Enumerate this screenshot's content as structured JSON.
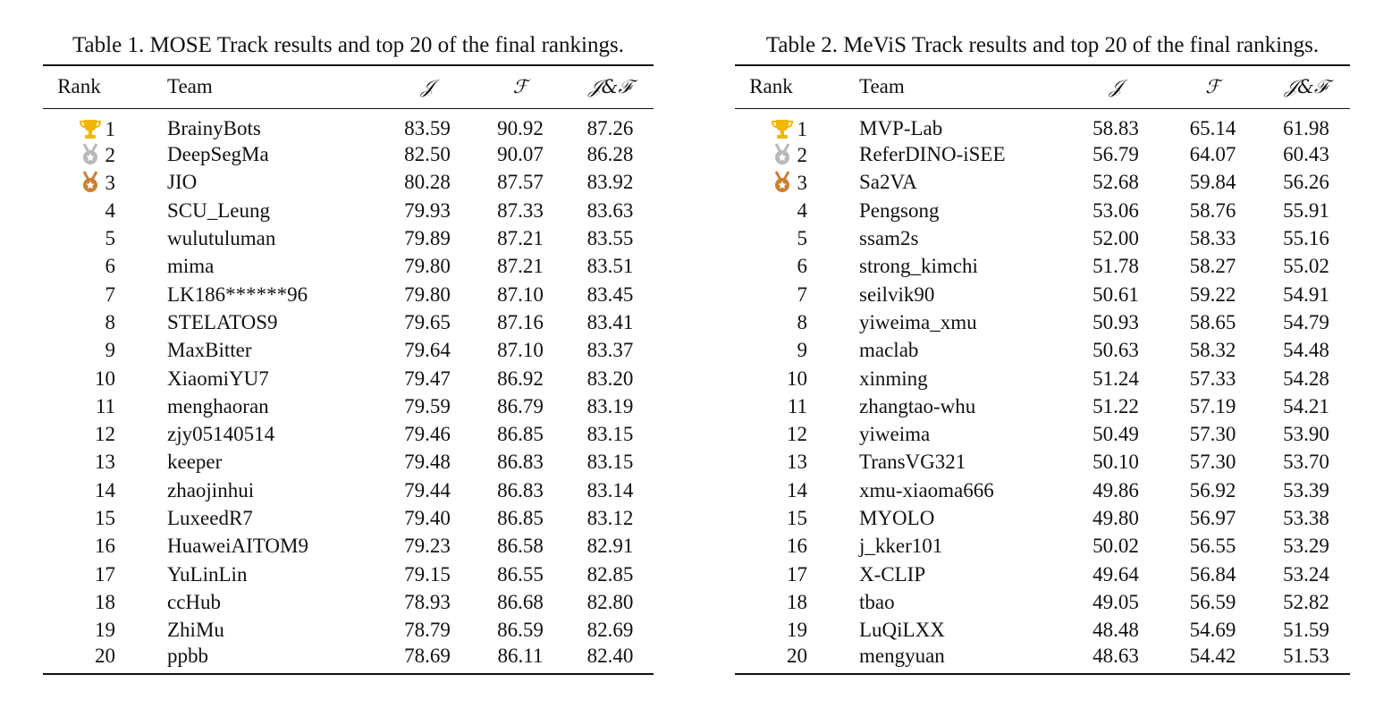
{
  "table1": {
    "caption": "Table 1. MOSE Track results and top 20 of the final rankings.",
    "headers": {
      "rank": "Rank",
      "team": "Team",
      "j": "𝒥",
      "f": "ℱ",
      "jf": "𝒥&ℱ"
    },
    "rows": [
      {
        "rank": "1",
        "team": "BrainyBots",
        "j": "83.59",
        "f": "90.92",
        "jf": "87.26",
        "medal": "trophy-icon"
      },
      {
        "rank": "2",
        "team": "DeepSegMa",
        "j": "82.50",
        "f": "90.07",
        "jf": "86.28",
        "medal": "silver-medal-icon"
      },
      {
        "rank": "3",
        "team": "JIO",
        "j": "80.28",
        "f": "87.57",
        "jf": "83.92",
        "medal": "bronze-medal-icon"
      },
      {
        "rank": "4",
        "team": "SCU_Leung",
        "j": "79.93",
        "f": "87.33",
        "jf": "83.63"
      },
      {
        "rank": "5",
        "team": "wulutuluman",
        "j": "79.89",
        "f": "87.21",
        "jf": "83.55"
      },
      {
        "rank": "6",
        "team": "mima",
        "j": "79.80",
        "f": "87.21",
        "jf": "83.51"
      },
      {
        "rank": "7",
        "team": "LK186******96",
        "j": "79.80",
        "f": "87.10",
        "jf": "83.45"
      },
      {
        "rank": "8",
        "team": "STELATOS9",
        "j": "79.65",
        "f": "87.16",
        "jf": "83.41"
      },
      {
        "rank": "9",
        "team": "MaxBitter",
        "j": "79.64",
        "f": "87.10",
        "jf": "83.37"
      },
      {
        "rank": "10",
        "team": "XiaomiYU7",
        "j": "79.47",
        "f": "86.92",
        "jf": "83.20"
      },
      {
        "rank": "11",
        "team": "menghaoran",
        "j": "79.59",
        "f": "86.79",
        "jf": "83.19"
      },
      {
        "rank": "12",
        "team": "zjy05140514",
        "j": "79.46",
        "f": "86.85",
        "jf": "83.15"
      },
      {
        "rank": "13",
        "team": "keeper",
        "j": "79.48",
        "f": "86.83",
        "jf": "83.15"
      },
      {
        "rank": "14",
        "team": "zhaojinhui",
        "j": "79.44",
        "f": "86.83",
        "jf": "83.14"
      },
      {
        "rank": "15",
        "team": "LuxeedR7",
        "j": "79.40",
        "f": "86.85",
        "jf": "83.12"
      },
      {
        "rank": "16",
        "team": "HuaweiAITOM9",
        "j": "79.23",
        "f": "86.58",
        "jf": "82.91"
      },
      {
        "rank": "17",
        "team": "YuLinLin",
        "j": "79.15",
        "f": "86.55",
        "jf": "82.85"
      },
      {
        "rank": "18",
        "team": "ccHub",
        "j": "78.93",
        "f": "86.68",
        "jf": "82.80"
      },
      {
        "rank": "19",
        "team": "ZhiMu",
        "j": "78.79",
        "f": "86.59",
        "jf": "82.69"
      },
      {
        "rank": "20",
        "team": "ppbb",
        "j": "78.69",
        "f": "86.11",
        "jf": "82.40"
      }
    ]
  },
  "table2": {
    "caption": "Table 2. MeViS Track results and top 20 of the final rankings.",
    "headers": {
      "rank": "Rank",
      "team": "Team",
      "j": "𝒥",
      "f": "ℱ",
      "jf": "𝒥&ℱ"
    },
    "rows": [
      {
        "rank": "1",
        "team": "MVP-Lab",
        "j": "58.83",
        "f": "65.14",
        "jf": "61.98",
        "medal": "trophy-icon"
      },
      {
        "rank": "2",
        "team": "ReferDINO-iSEE",
        "j": "56.79",
        "f": "64.07",
        "jf": "60.43",
        "medal": "silver-medal-icon"
      },
      {
        "rank": "3",
        "team": "Sa2VA",
        "j": "52.68",
        "f": "59.84",
        "jf": "56.26",
        "medal": "bronze-medal-icon"
      },
      {
        "rank": "4",
        "team": "Pengsong",
        "j": "53.06",
        "f": "58.76",
        "jf": "55.91"
      },
      {
        "rank": "5",
        "team": "ssam2s",
        "j": "52.00",
        "f": "58.33",
        "jf": "55.16"
      },
      {
        "rank": "6",
        "team": "strong_kimchi",
        "j": "51.78",
        "f": "58.27",
        "jf": "55.02"
      },
      {
        "rank": "7",
        "team": "seilvik90",
        "j": "50.61",
        "f": "59.22",
        "jf": "54.91"
      },
      {
        "rank": "8",
        "team": "yiweima_xmu",
        "j": "50.93",
        "f": "58.65",
        "jf": "54.79"
      },
      {
        "rank": "9",
        "team": "maclab",
        "j": "50.63",
        "f": "58.32",
        "jf": "54.48"
      },
      {
        "rank": "10",
        "team": "xinming",
        "j": "51.24",
        "f": "57.33",
        "jf": "54.28"
      },
      {
        "rank": "11",
        "team": "zhangtao-whu",
        "j": "51.22",
        "f": "57.19",
        "jf": "54.21"
      },
      {
        "rank": "12",
        "team": "yiweima",
        "j": "50.49",
        "f": "57.30",
        "jf": "53.90"
      },
      {
        "rank": "13",
        "team": "TransVG321",
        "j": "50.10",
        "f": "57.30",
        "jf": "53.70"
      },
      {
        "rank": "14",
        "team": "xmu-xiaoma666",
        "j": "49.86",
        "f": "56.92",
        "jf": "53.39"
      },
      {
        "rank": "15",
        "team": "MYOLO",
        "j": "49.80",
        "f": "56.97",
        "jf": "53.38"
      },
      {
        "rank": "16",
        "team": "j_kker101",
        "j": "50.02",
        "f": "56.55",
        "jf": "53.29"
      },
      {
        "rank": "17",
        "team": "X-CLIP",
        "j": "49.64",
        "f": "56.84",
        "jf": "53.24"
      },
      {
        "rank": "18",
        "team": "tbao",
        "j": "49.05",
        "f": "56.59",
        "jf": "52.82"
      },
      {
        "rank": "19",
        "team": "LuQiLXX",
        "j": "48.48",
        "f": "54.69",
        "jf": "51.59"
      },
      {
        "rank": "20",
        "team": "mengyuan",
        "j": "48.63",
        "f": "54.42",
        "jf": "51.53"
      }
    ]
  },
  "colors": {
    "gold": "#F2B705",
    "silver": "#B9B9B9",
    "bronze": "#CD7F32",
    "text": "#111111"
  }
}
